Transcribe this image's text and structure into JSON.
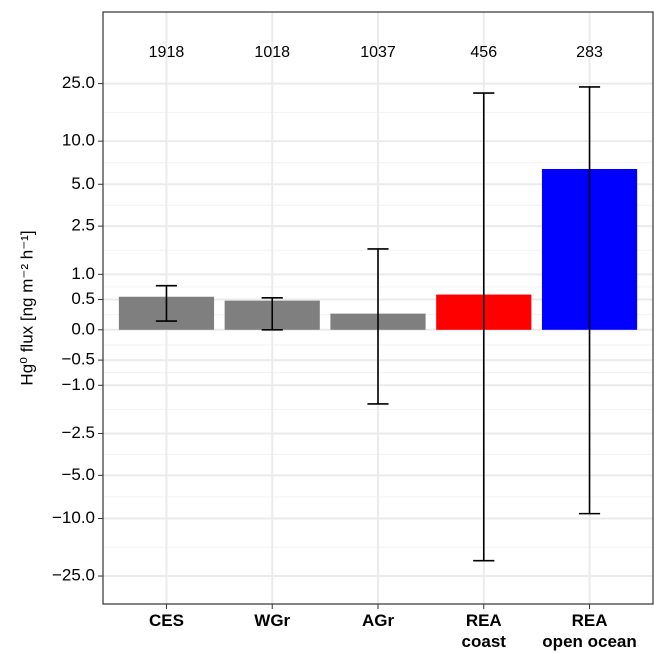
{
  "chart_data": {
    "type": "bar",
    "ylabel": "Hg⁰ flux [ng m⁻² h⁻¹]",
    "categories": [
      "CES",
      "WGr",
      "AGr",
      "REA\ncoast",
      "REA\nopen ocean"
    ],
    "counts": [
      1918,
      1018,
      1037,
      456,
      283
    ],
    "values": [
      0.55,
      0.48,
      0.26,
      0.59,
      6.4
    ],
    "lower": [
      0.14,
      0.0,
      -1.47,
      -19.6,
      -9.25
    ],
    "upper": [
      0.76,
      0.53,
      1.67,
      21.5,
      23.7
    ],
    "colors": [
      "#7f7f7f",
      "#7f7f7f",
      "#7f7f7f",
      "#ff0000",
      "#0000ff"
    ],
    "yscale": "asinh",
    "ylim": [
      -39,
      78
    ],
    "yticks": [
      {
        "value": -25,
        "label": "−25.0"
      },
      {
        "value": -10,
        "label": "−10.0"
      },
      {
        "value": -5,
        "label": "−5.0"
      },
      {
        "value": -2.5,
        "label": "−2.5"
      },
      {
        "value": -1,
        "label": "−1.0"
      },
      {
        "value": -0.5,
        "label": "−0.5"
      },
      {
        "value": 0,
        "label": "0.0"
      },
      {
        "value": 0.5,
        "label": "0.5"
      },
      {
        "value": 1,
        "label": "1.0"
      },
      {
        "value": 2.5,
        "label": "2.5"
      },
      {
        "value": 5,
        "label": "5.0"
      },
      {
        "value": 10,
        "label": "10.0"
      },
      {
        "value": 25,
        "label": "25.0"
      }
    ],
    "grid": true
  }
}
